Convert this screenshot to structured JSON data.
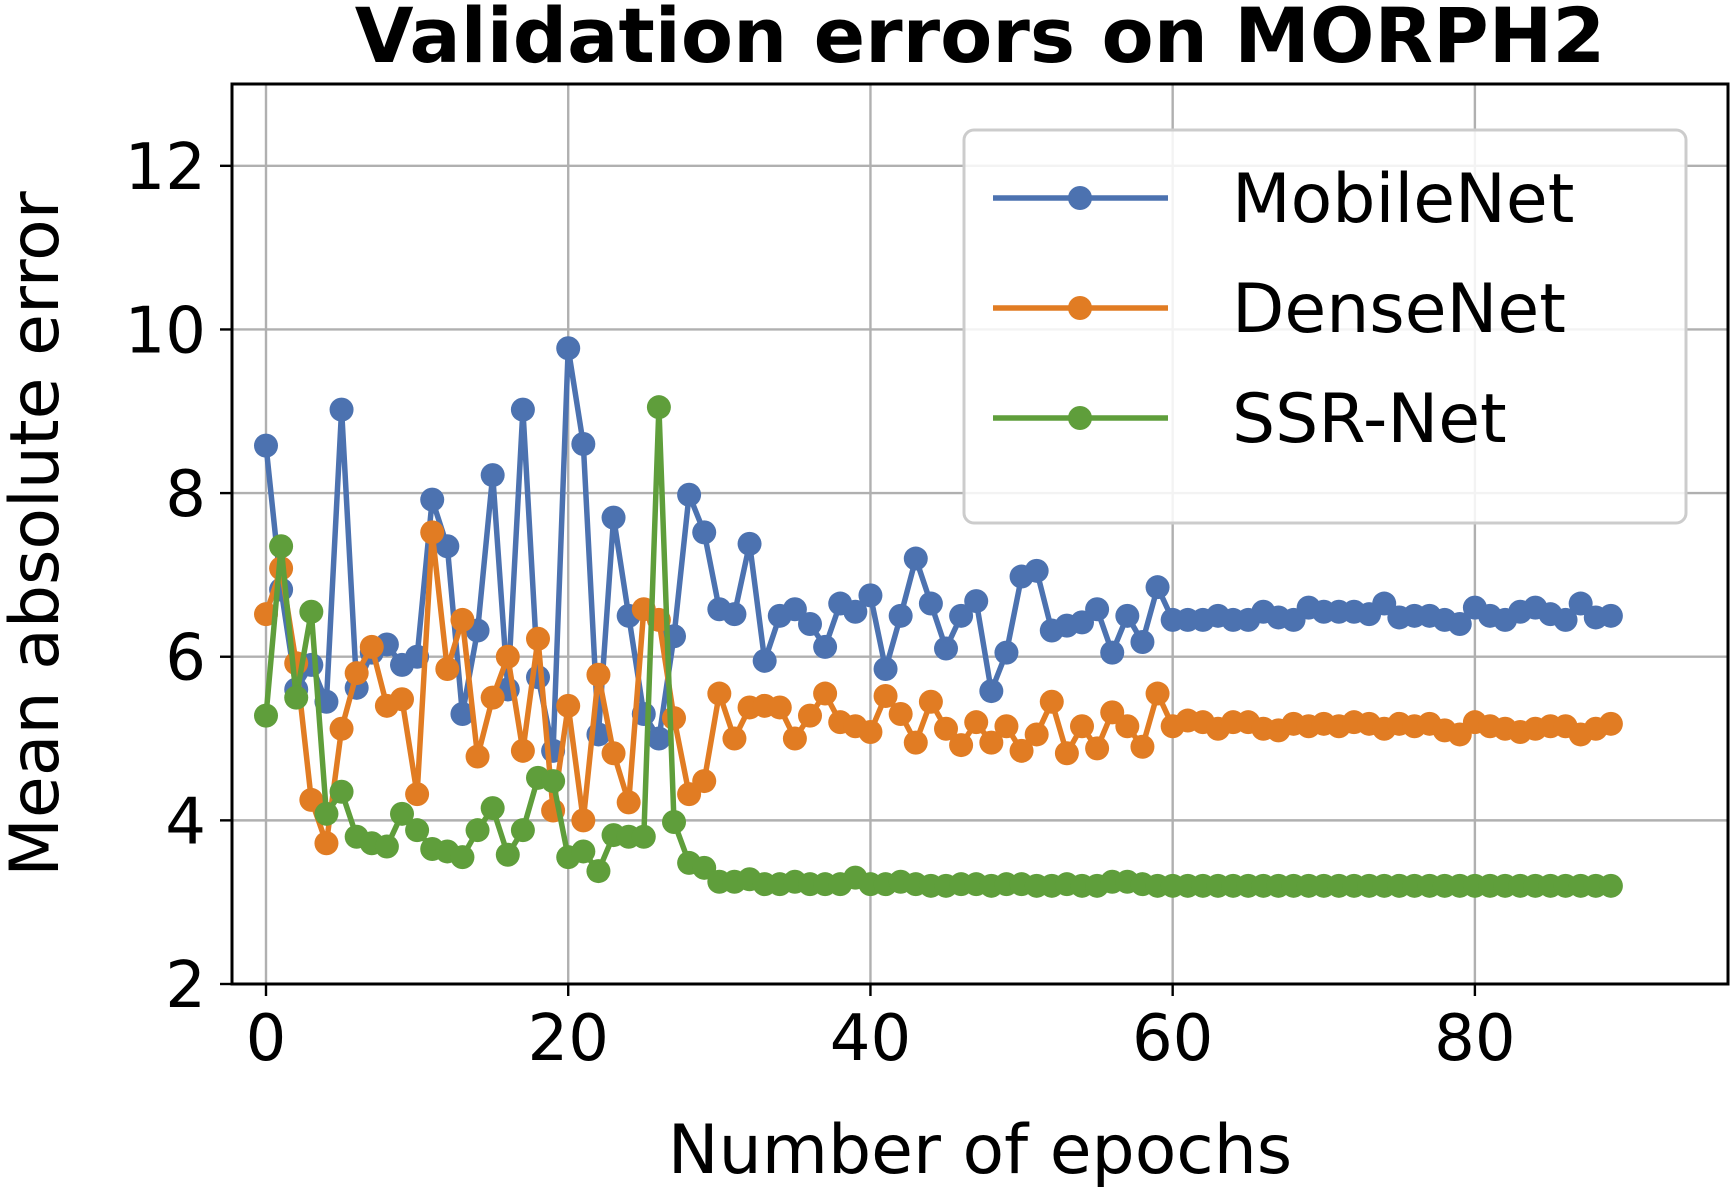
{
  "chart_data": {
    "type": "line",
    "title": "Validation errors on MORPH2",
    "xlabel": "Number of epochs",
    "ylabel": "Mean absolute error",
    "xlim": [
      -2.25,
      96.75
    ],
    "ylim": [
      2,
      13
    ],
    "xticks": [
      0,
      20,
      40,
      60,
      80
    ],
    "yticks": [
      2,
      4,
      6,
      8,
      10,
      12
    ],
    "grid": true,
    "legend_position": "top-right",
    "x": [
      0,
      1,
      2,
      3,
      4,
      5,
      6,
      7,
      8,
      9,
      10,
      11,
      12,
      13,
      14,
      15,
      16,
      17,
      18,
      19,
      20,
      21,
      22,
      23,
      24,
      25,
      26,
      27,
      28,
      29,
      30,
      31,
      32,
      33,
      34,
      35,
      36,
      37,
      38,
      39,
      40,
      41,
      42,
      43,
      44,
      45,
      46,
      47,
      48,
      49,
      50,
      51,
      52,
      53,
      54,
      55,
      56,
      57,
      58,
      59,
      60,
      61,
      62,
      63,
      64,
      65,
      66,
      67,
      68,
      69,
      70,
      71,
      72,
      73,
      74,
      75,
      76,
      77,
      78,
      79,
      80,
      81,
      82,
      83,
      84,
      85,
      86,
      87,
      88,
      89
    ],
    "series": [
      {
        "name": "MobileNet",
        "color": "#4c72b0",
        "values": [
          8.58,
          6.82,
          5.6,
          5.9,
          5.45,
          9.02,
          5.62,
          6.05,
          6.15,
          5.9,
          6.0,
          7.92,
          7.35,
          5.3,
          6.32,
          8.22,
          5.6,
          9.02,
          5.75,
          4.85,
          9.77,
          8.6,
          5.05,
          7.7,
          6.5,
          5.3,
          5.0,
          6.25,
          7.98,
          7.52,
          6.58,
          6.52,
          7.38,
          5.95,
          6.5,
          6.58,
          6.4,
          6.12,
          6.65,
          6.55,
          6.75,
          5.85,
          6.5,
          7.2,
          6.65,
          6.1,
          6.5,
          6.68,
          5.58,
          6.05,
          6.98,
          7.05,
          6.32,
          6.38,
          6.42,
          6.58,
          6.05,
          6.5,
          6.18,
          6.85,
          6.45,
          6.45,
          6.45,
          6.5,
          6.45,
          6.45,
          6.55,
          6.48,
          6.45,
          6.6,
          6.55,
          6.55,
          6.55,
          6.52,
          6.65,
          6.48,
          6.5,
          6.5,
          6.45,
          6.4,
          6.6,
          6.5,
          6.45,
          6.55,
          6.6,
          6.52,
          6.45,
          6.65,
          6.48,
          6.5
        ]
      },
      {
        "name": "DenseNet",
        "color": "#e17c23",
        "values": [
          6.52,
          7.08,
          5.92,
          4.25,
          3.72,
          5.12,
          5.8,
          6.12,
          5.4,
          5.48,
          4.32,
          7.52,
          5.85,
          6.45,
          4.78,
          5.5,
          6.0,
          4.85,
          6.22,
          4.12,
          5.4,
          4.0,
          5.78,
          4.82,
          4.22,
          6.58,
          6.45,
          5.25,
          4.32,
          4.48,
          5.55,
          5.0,
          5.38,
          5.4,
          5.38,
          5.0,
          5.28,
          5.55,
          5.2,
          5.15,
          5.08,
          5.52,
          5.3,
          4.95,
          5.45,
          5.12,
          4.92,
          5.2,
          4.95,
          5.15,
          4.85,
          5.05,
          5.45,
          4.82,
          5.15,
          4.88,
          5.32,
          5.15,
          4.9,
          5.55,
          5.15,
          5.22,
          5.2,
          5.12,
          5.2,
          5.2,
          5.12,
          5.1,
          5.18,
          5.15,
          5.18,
          5.15,
          5.2,
          5.18,
          5.12,
          5.18,
          5.15,
          5.18,
          5.1,
          5.05,
          5.2,
          5.15,
          5.12,
          5.08,
          5.12,
          5.15,
          5.15,
          5.05,
          5.12,
          5.18
        ]
      },
      {
        "name": "SSR-Net",
        "color": "#5f9e3b",
        "values": [
          5.28,
          7.35,
          5.5,
          6.55,
          4.08,
          4.35,
          3.8,
          3.72,
          3.68,
          4.08,
          3.88,
          3.65,
          3.62,
          3.55,
          3.88,
          4.15,
          3.58,
          3.88,
          4.52,
          4.48,
          3.55,
          3.62,
          3.38,
          3.82,
          3.8,
          3.8,
          9.05,
          3.98,
          3.48,
          3.42,
          3.25,
          3.25,
          3.28,
          3.22,
          3.22,
          3.25,
          3.22,
          3.22,
          3.22,
          3.3,
          3.22,
          3.22,
          3.25,
          3.22,
          3.2,
          3.2,
          3.22,
          3.22,
          3.2,
          3.22,
          3.22,
          3.2,
          3.2,
          3.22,
          3.2,
          3.2,
          3.25,
          3.25,
          3.22,
          3.2,
          3.2,
          3.2,
          3.2,
          3.2,
          3.2,
          3.2,
          3.2,
          3.2,
          3.2,
          3.2,
          3.2,
          3.2,
          3.2,
          3.2,
          3.2,
          3.2,
          3.2,
          3.2,
          3.2,
          3.2,
          3.2,
          3.2,
          3.2,
          3.2,
          3.2,
          3.2,
          3.2,
          3.2,
          3.2,
          3.2
        ]
      }
    ]
  }
}
